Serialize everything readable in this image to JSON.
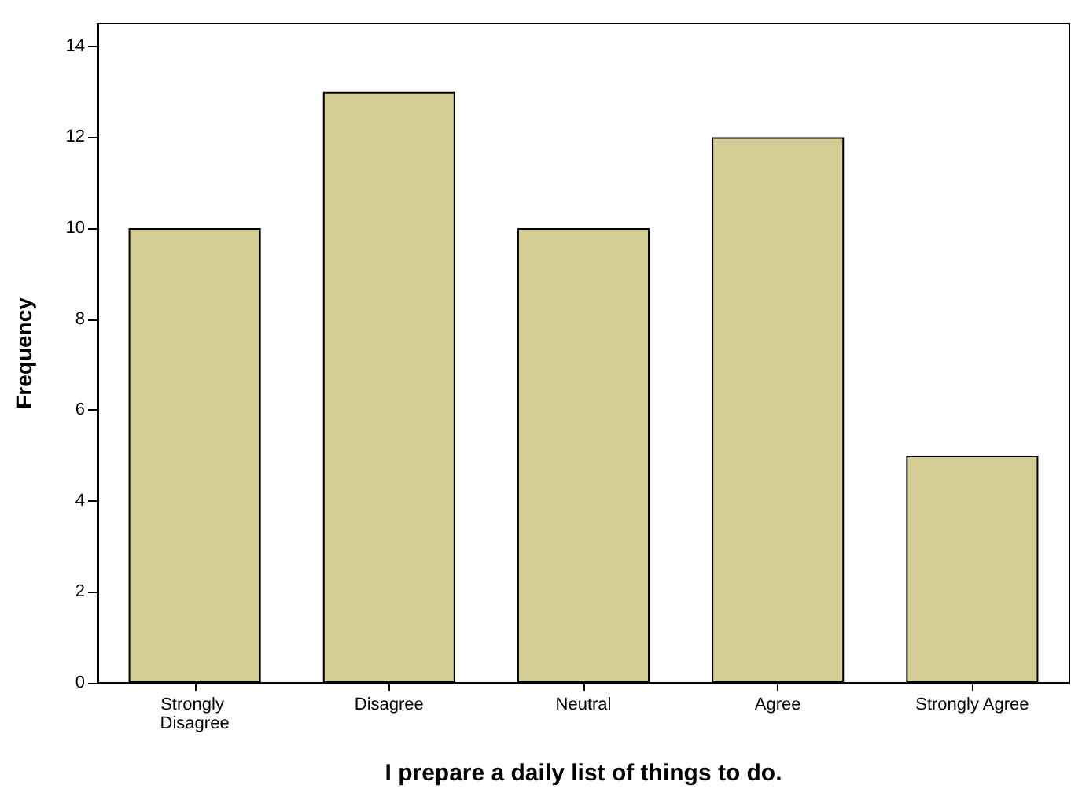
{
  "chart_data": {
    "type": "bar",
    "xlabel": "I prepare a daily list of things to do.",
    "ylabel": "Frequency",
    "categories": [
      "Strongly Disagree",
      "Disagree",
      "Neutral",
      "Agree",
      "Strongly Agree"
    ],
    "values": [
      10,
      13,
      10,
      12,
      5
    ],
    "color": "#d4cd96",
    "ylim": [
      0,
      14.5
    ],
    "yticks": [
      0,
      2,
      4,
      6,
      8,
      10,
      12,
      14
    ]
  }
}
